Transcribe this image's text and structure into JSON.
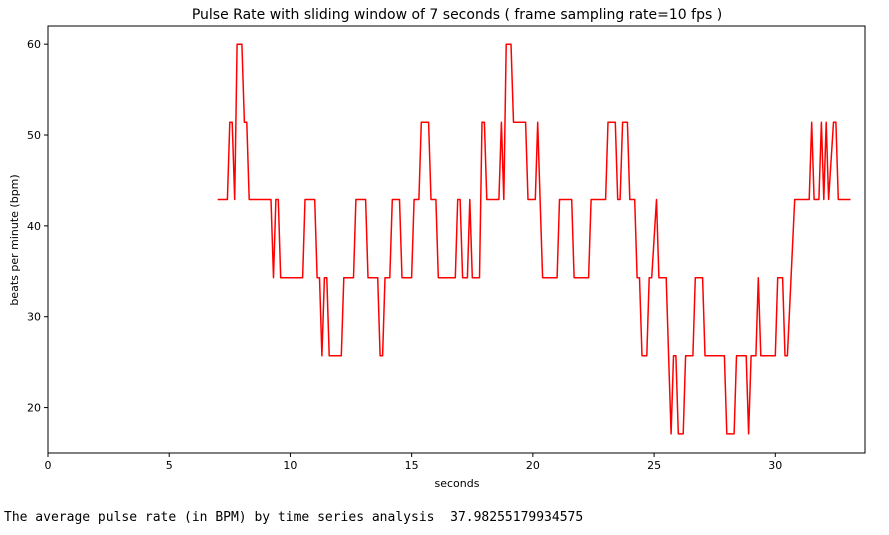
{
  "chart_data": {
    "type": "line",
    "title": "Pulse Rate with sliding window of 7 seconds  ( frame sampling rate=10 fps )",
    "xlabel": "seconds",
    "ylabel": "beats per minute (bpm)",
    "xlim": [
      0,
      33.7
    ],
    "ylim": [
      15,
      62
    ],
    "xticks": [
      0,
      5,
      10,
      15,
      20,
      25,
      30
    ],
    "yticks": [
      20,
      30,
      40,
      50,
      60
    ],
    "grid": false,
    "legend": "none",
    "series": [
      {
        "color": "#ff0000",
        "values": [
          [
            7.0,
            42.9
          ],
          [
            7.4,
            42.9
          ],
          [
            7.5,
            51.4
          ],
          [
            7.6,
            51.4
          ],
          [
            7.7,
            42.9
          ],
          [
            7.8,
            60.0
          ],
          [
            8.0,
            60.0
          ],
          [
            8.1,
            51.4
          ],
          [
            8.2,
            51.4
          ],
          [
            8.3,
            42.9
          ],
          [
            9.2,
            42.9
          ],
          [
            9.3,
            34.3
          ],
          [
            9.4,
            42.9
          ],
          [
            9.5,
            42.9
          ],
          [
            9.6,
            34.3
          ],
          [
            10.5,
            34.3
          ],
          [
            10.6,
            42.9
          ],
          [
            11.0,
            42.9
          ],
          [
            11.1,
            34.3
          ],
          [
            11.2,
            34.3
          ],
          [
            11.3,
            25.7
          ],
          [
            11.4,
            34.3
          ],
          [
            11.5,
            34.3
          ],
          [
            11.6,
            25.7
          ],
          [
            12.1,
            25.7
          ],
          [
            12.2,
            34.3
          ],
          [
            12.6,
            34.3
          ],
          [
            12.7,
            42.9
          ],
          [
            13.1,
            42.9
          ],
          [
            13.2,
            34.3
          ],
          [
            13.6,
            34.3
          ],
          [
            13.7,
            25.7
          ],
          [
            13.8,
            25.7
          ],
          [
            13.9,
            34.3
          ],
          [
            14.1,
            34.3
          ],
          [
            14.2,
            42.9
          ],
          [
            14.5,
            42.9
          ],
          [
            14.6,
            34.3
          ],
          [
            15.0,
            34.3
          ],
          [
            15.1,
            42.9
          ],
          [
            15.3,
            42.9
          ],
          [
            15.4,
            51.4
          ],
          [
            15.7,
            51.4
          ],
          [
            15.8,
            42.9
          ],
          [
            16.0,
            42.9
          ],
          [
            16.1,
            34.3
          ],
          [
            16.8,
            34.3
          ],
          [
            16.9,
            42.9
          ],
          [
            17.0,
            42.9
          ],
          [
            17.1,
            34.3
          ],
          [
            17.3,
            34.3
          ],
          [
            17.4,
            42.9
          ],
          [
            17.5,
            34.3
          ],
          [
            17.8,
            34.3
          ],
          [
            17.9,
            51.4
          ],
          [
            18.0,
            51.4
          ],
          [
            18.1,
            42.9
          ],
          [
            18.6,
            42.9
          ],
          [
            18.7,
            51.4
          ],
          [
            18.8,
            42.9
          ],
          [
            18.9,
            60.0
          ],
          [
            19.1,
            60.0
          ],
          [
            19.2,
            51.4
          ],
          [
            19.7,
            51.4
          ],
          [
            19.8,
            42.9
          ],
          [
            20.1,
            42.9
          ],
          [
            20.2,
            51.4
          ],
          [
            20.3,
            42.9
          ],
          [
            20.4,
            34.3
          ],
          [
            21.0,
            34.3
          ],
          [
            21.1,
            42.9
          ],
          [
            21.6,
            42.9
          ],
          [
            21.7,
            34.3
          ],
          [
            22.3,
            34.3
          ],
          [
            22.4,
            42.9
          ],
          [
            23.0,
            42.9
          ],
          [
            23.1,
            51.4
          ],
          [
            23.4,
            51.4
          ],
          [
            23.5,
            42.9
          ],
          [
            23.6,
            42.9
          ],
          [
            23.7,
            51.4
          ],
          [
            23.9,
            51.4
          ],
          [
            24.0,
            42.9
          ],
          [
            24.2,
            42.9
          ],
          [
            24.3,
            34.3
          ],
          [
            24.4,
            34.3
          ],
          [
            24.5,
            25.7
          ],
          [
            24.7,
            25.7
          ],
          [
            24.8,
            34.3
          ],
          [
            24.9,
            34.3
          ],
          [
            25.1,
            42.9
          ],
          [
            25.2,
            34.3
          ],
          [
            25.5,
            34.3
          ],
          [
            25.6,
            25.7
          ],
          [
            25.7,
            17.1
          ],
          [
            25.8,
            25.7
          ],
          [
            25.9,
            25.7
          ],
          [
            26.0,
            17.1
          ],
          [
            26.2,
            17.1
          ],
          [
            26.3,
            25.7
          ],
          [
            26.6,
            25.7
          ],
          [
            26.7,
            34.3
          ],
          [
            27.0,
            34.3
          ],
          [
            27.1,
            25.7
          ],
          [
            27.9,
            25.7
          ],
          [
            28.0,
            17.1
          ],
          [
            28.3,
            17.1
          ],
          [
            28.4,
            25.7
          ],
          [
            28.8,
            25.7
          ],
          [
            28.9,
            17.1
          ],
          [
            29.0,
            25.7
          ],
          [
            29.2,
            25.7
          ],
          [
            29.3,
            34.3
          ],
          [
            29.4,
            25.7
          ],
          [
            30.0,
            25.7
          ],
          [
            30.1,
            34.3
          ],
          [
            30.3,
            34.3
          ],
          [
            30.4,
            25.7
          ],
          [
            30.5,
            25.7
          ],
          [
            30.8,
            42.9
          ],
          [
            31.4,
            42.9
          ],
          [
            31.5,
            51.4
          ],
          [
            31.6,
            42.9
          ],
          [
            31.8,
            42.9
          ],
          [
            31.9,
            51.4
          ],
          [
            32.0,
            42.9
          ],
          [
            32.1,
            51.4
          ],
          [
            32.2,
            42.9
          ],
          [
            32.4,
            51.4
          ],
          [
            32.5,
            51.4
          ],
          [
            32.6,
            42.9
          ],
          [
            33.1,
            42.9
          ]
        ]
      }
    ]
  },
  "output": {
    "label": "The average pulse rate (in BPM) by time series analysis",
    "value": "37.98255179934575"
  }
}
